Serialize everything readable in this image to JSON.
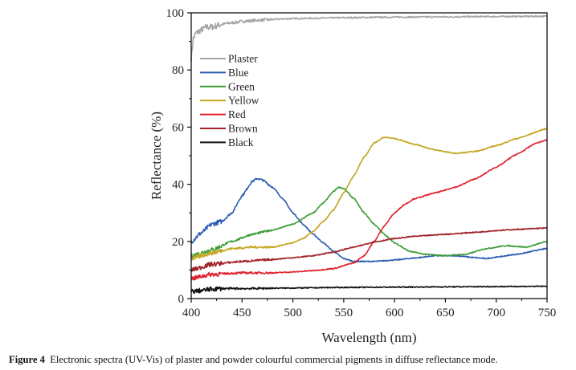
{
  "chart_data": {
    "type": "line",
    "title": "",
    "xlabel": "Wavelength (nm)",
    "ylabel": "Reflectance (%)",
    "xlim": [
      400,
      750
    ],
    "ylim": [
      0,
      100
    ],
    "xticks": [
      400,
      450,
      500,
      550,
      600,
      650,
      700,
      750
    ],
    "yticks": [
      0,
      20,
      40,
      60,
      80,
      100
    ],
    "grid": false,
    "legend_position": "upper-left",
    "series": [
      {
        "name": "Plaster",
        "color": "#a6a6a6",
        "x": [
          400,
          402,
          405,
          410,
          415,
          420,
          430,
          440,
          450,
          470,
          500,
          550,
          600,
          650,
          700,
          750
        ],
        "y": [
          84,
          91,
          93,
          94,
          95,
          95,
          96,
          96.5,
          97,
          97.5,
          98,
          98.3,
          98.5,
          98.6,
          98.7,
          98.8
        ]
      },
      {
        "name": "Blue",
        "color": "#2a5db0",
        "x": [
          400,
          410,
          420,
          430,
          440,
          450,
          460,
          465,
          470,
          480,
          490,
          500,
          510,
          520,
          530,
          540,
          550,
          560,
          580,
          600,
          620,
          640,
          660,
          680,
          690,
          700,
          720,
          750
        ],
        "y": [
          20,
          23,
          26,
          27,
          30,
          36,
          41,
          42,
          41.5,
          39,
          35,
          30,
          26,
          22.5,
          19.5,
          16.5,
          14,
          13,
          13,
          13.5,
          14.2,
          15,
          15,
          14.3,
          14,
          14.5,
          15.5,
          17.5
        ]
      },
      {
        "name": "Green",
        "color": "#3d9b35",
        "x": [
          400,
          420,
          440,
          460,
          480,
          500,
          520,
          530,
          540,
          545,
          550,
          560,
          570,
          580,
          590,
          600,
          615,
          630,
          650,
          670,
          690,
          710,
          730,
          750
        ],
        "y": [
          15,
          17,
          20,
          22.5,
          24,
          26,
          30,
          33.5,
          37.5,
          39,
          38.5,
          35,
          30,
          26,
          22.5,
          19.5,
          16.5,
          15.5,
          15,
          15.5,
          17.5,
          18.5,
          18,
          20
        ]
      },
      {
        "name": "Yellow",
        "color": "#c3a620",
        "x": [
          400,
          420,
          440,
          460,
          480,
          500,
          510,
          520,
          530,
          540,
          550,
          560,
          570,
          580,
          590,
          600,
          620,
          640,
          660,
          680,
          700,
          720,
          750
        ],
        "y": [
          14,
          16,
          17.5,
          18,
          18,
          19.5,
          21,
          23.5,
          27,
          31,
          37,
          43,
          49.5,
          54.5,
          56.5,
          56,
          54,
          52,
          50.8,
          51.5,
          53.5,
          56,
          59.5
        ]
      },
      {
        "name": "Red",
        "color": "#e0232f",
        "x": [
          400,
          420,
          450,
          480,
          500,
          520,
          540,
          560,
          570,
          580,
          590,
          600,
          610,
          620,
          640,
          660,
          680,
          700,
          720,
          740,
          750
        ],
        "y": [
          7,
          8.5,
          9,
          9,
          9.3,
          9.8,
          10.5,
          12.5,
          15,
          20,
          25.5,
          30,
          33,
          35,
          37,
          39,
          42,
          46,
          50.5,
          54.5,
          55.5
        ]
      },
      {
        "name": "Brown",
        "color": "#a1232a",
        "x": [
          400,
          420,
          450,
          480,
          500,
          520,
          540,
          560,
          580,
          600,
          620,
          650,
          680,
          700,
          720,
          750
        ],
        "y": [
          10,
          12,
          13,
          13.7,
          14.3,
          15,
          16.3,
          18,
          19.8,
          21,
          21.8,
          22.5,
          23.2,
          23.8,
          24.2,
          24.7
        ]
      },
      {
        "name": "Black",
        "color": "#111111",
        "x": [
          400,
          410,
          420,
          430,
          450,
          500,
          550,
          600,
          650,
          700,
          750
        ],
        "y": [
          2.5,
          2.8,
          3.3,
          3.5,
          3.5,
          3.7,
          3.9,
          4.0,
          4.1,
          4.2,
          4.3
        ]
      }
    ]
  },
  "caption": {
    "label": "Figure 4",
    "text": "Electronic spectra (UV-Vis) of plaster and powder colourful commercial pigments in diffuse reflectance mode."
  }
}
